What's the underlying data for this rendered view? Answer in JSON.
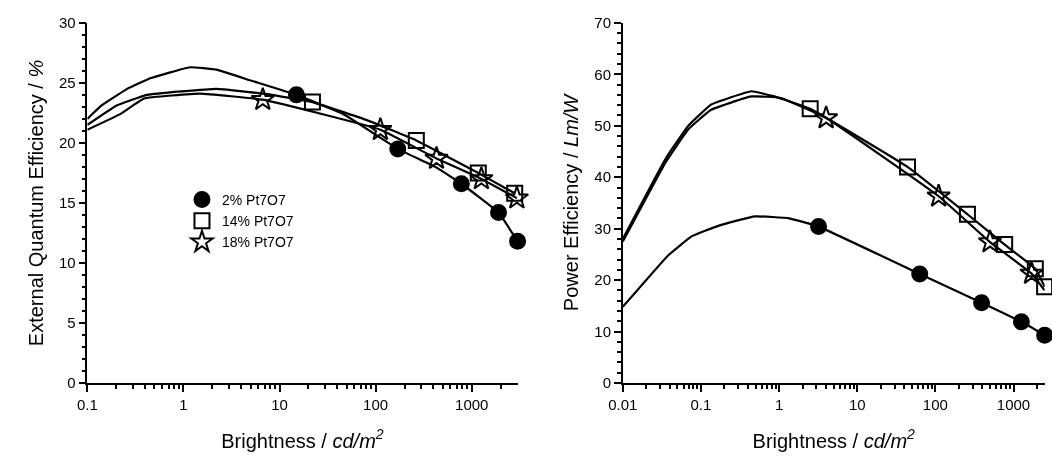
{
  "chart_data": [
    {
      "type": "line",
      "xlabel": "Brightness / cd/m$^{2}$",
      "ylabel": "External Quantum Efficiency / %",
      "log": "x",
      "xlim": [
        0.1,
        3000
      ],
      "xticks": [
        0.1,
        1,
        10,
        100,
        1000
      ],
      "ylim": [
        0,
        30
      ],
      "yticks": [
        0,
        5,
        10,
        15,
        20,
        25,
        30
      ],
      "legend": "center left",
      "series": [
        {
          "color": "#000000",
          "x": [
            0.1,
            0.14,
            0.26,
            0.46,
            1.17,
            2.2,
            5,
            15,
            46,
            170,
            440,
            780,
            1900,
            3000
          ],
          "values": [
            22.0,
            23.1,
            24.5,
            25.4,
            26.3,
            26.1,
            25.2,
            24.0,
            22.4,
            19.5,
            17.9,
            16.6,
            14.2,
            11.8
          ]
        },
        {
          "color": "#000000",
          "x": [
            0.1,
            0.2,
            0.42,
            2.2,
            6.8,
            22,
            81,
            265,
            1170,
            2800
          ],
          "values": [
            21.5,
            23.1,
            24.0,
            24.5,
            24.1,
            23.4,
            21.9,
            20.2,
            17.5,
            15.8
          ]
        },
        {
          "color": "#000000",
          "x": [
            0.1,
            0.22,
            0.39,
            1.5,
            6.7,
            112,
            430,
            1260,
            2950
          ],
          "values": [
            21.1,
            22.4,
            23.7,
            24.1,
            23.6,
            21.1,
            18.7,
            17.0,
            15.4
          ]
        },
        {
          "type": "scatter",
          "name": "2% Pt7O7",
          "marker": "circle",
          "color": "#000000",
          "x": [
            15,
            170,
            780,
            1900,
            3000
          ],
          "values": [
            24.0,
            19.5,
            16.6,
            14.2,
            11.8
          ]
        },
        {
          "type": "scatter",
          "name": "14% Pt7O7",
          "marker": "square",
          "color": "#000000",
          "x": [
            22,
            265,
            1170,
            2800
          ],
          "values": [
            23.4,
            20.2,
            17.5,
            15.8
          ]
        },
        {
          "type": "scatter",
          "name": "18% Pt7O7",
          "marker": "star",
          "color": "#000000",
          "x": [
            6.7,
            112,
            430,
            1260,
            2950
          ],
          "values": [
            23.6,
            21.1,
            18.7,
            17.0,
            15.4
          ]
        }
      ]
    },
    {
      "type": "line",
      "xlabel": "Brightness / cd/m$^{2}$",
      "ylabel": "Power Efficiency / Lm/W",
      "log": "x",
      "xlim": [
        0.01,
        2500
      ],
      "xticks": [
        0.01,
        0.1,
        1,
        10,
        100,
        1000
      ],
      "ylim": [
        0,
        70
      ],
      "yticks": [
        0,
        10,
        20,
        30,
        40,
        50,
        60,
        70
      ],
      "series": [
        {
          "color": "#000000",
          "x": [
            0.01,
            0.038,
            0.076,
            0.17,
            0.49,
            1.35,
            3.2,
            63,
            390,
            1260,
            2500
          ],
          "values": [
            14.8,
            24.8,
            28.5,
            30.6,
            32.4,
            32.0,
            30.4,
            21.2,
            15.6,
            11.9,
            9.3
          ]
        },
        {
          "color": "#000000",
          "x": [
            0.01,
            0.035,
            0.069,
            0.135,
            0.44,
            0.87,
            2.5,
            44,
            257,
            770,
            1900,
            2500
          ],
          "values": [
            28.0,
            43.5,
            50.0,
            54.1,
            56.7,
            55.7,
            53.3,
            42.0,
            32.8,
            26.9,
            22.2,
            18.7
          ]
        },
        {
          "color": "#000000",
          "x": [
            0.01,
            0.035,
            0.069,
            0.135,
            0.44,
            1.05,
            4.0,
            110,
            500,
            1700,
            2500
          ],
          "values": [
            27.5,
            42.8,
            49.3,
            53.1,
            55.7,
            55.4,
            51.5,
            36.3,
            27.4,
            21.3,
            18.0
          ]
        },
        {
          "type": "scatter",
          "marker": "circle",
          "color": "#000000",
          "x": [
            3.2,
            63,
            390,
            1260,
            2500
          ],
          "values": [
            30.4,
            21.2,
            15.6,
            11.9,
            9.3
          ]
        },
        {
          "type": "scatter",
          "marker": "square",
          "color": "#000000",
          "x": [
            2.5,
            44,
            257,
            770,
            1900,
            2500
          ],
          "values": [
            53.3,
            42.0,
            32.8,
            26.9,
            22.2,
            18.7
          ]
        },
        {
          "type": "scatter",
          "marker": "star",
          "color": "#000000",
          "x": [
            4.0,
            110,
            500,
            1700
          ],
          "values": [
            51.5,
            36.3,
            27.4,
            21.3
          ]
        }
      ]
    }
  ]
}
